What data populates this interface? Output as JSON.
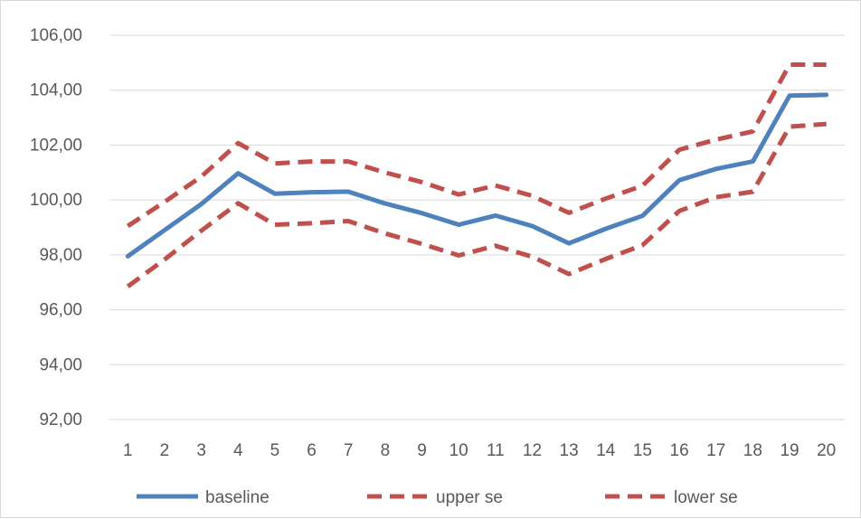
{
  "chart_data": {
    "type": "line",
    "title": "",
    "xlabel": "",
    "ylabel": "",
    "categories": [
      "1",
      "2",
      "3",
      "4",
      "5",
      "6",
      "7",
      "8",
      "9",
      "10",
      "11",
      "12",
      "13",
      "14",
      "15",
      "16",
      "17",
      "18",
      "19",
      "20"
    ],
    "y_ticks": [
      "92,00",
      "94,00",
      "96,00",
      "98,00",
      "100,00",
      "102,00",
      "104,00",
      "106,00"
    ],
    "ylim": [
      92,
      106
    ],
    "grid": true,
    "legend_position": "bottom",
    "series": [
      {
        "name": "baseline",
        "color": "#4f81bd",
        "dash": "solid",
        "values": [
          97.95,
          98.9,
          99.85,
          100.97,
          100.23,
          100.28,
          100.3,
          99.87,
          99.52,
          99.1,
          99.43,
          99.05,
          98.42,
          98.95,
          99.42,
          100.72,
          101.13,
          101.4,
          103.8,
          103.83
        ]
      },
      {
        "name": "upper se",
        "color": "#c0504d",
        "dash": "dashed",
        "values": [
          99.05,
          99.93,
          100.85,
          102.07,
          101.33,
          101.4,
          101.4,
          101.0,
          100.65,
          100.2,
          100.53,
          100.15,
          99.53,
          100.05,
          100.52,
          101.83,
          102.2,
          102.5,
          104.93,
          104.93
        ]
      },
      {
        "name": "lower se",
        "color": "#c0504d",
        "dash": "dashed",
        "values": [
          96.85,
          97.83,
          98.88,
          99.88,
          99.1,
          99.15,
          99.23,
          98.78,
          98.4,
          97.98,
          98.33,
          97.93,
          97.3,
          97.85,
          98.35,
          99.6,
          100.1,
          100.3,
          102.67,
          102.77
        ]
      }
    ]
  }
}
